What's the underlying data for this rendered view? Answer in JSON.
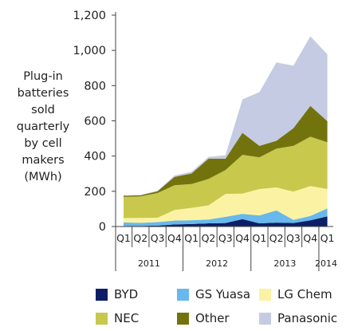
{
  "chart_data": {
    "type": "area",
    "stacked": true,
    "ylabel_lines": [
      "Plug-in",
      "batteries",
      "sold",
      "quarterly",
      "by cell",
      "makers",
      "(MWh)"
    ],
    "ylim": [
      0,
      1200
    ],
    "yticks": [
      0,
      200,
      400,
      600,
      800,
      1000,
      1200
    ],
    "ytick_labels": [
      "0",
      "200",
      "400",
      "600",
      "800",
      "1,000",
      "1,200"
    ],
    "categories": [
      "Q1",
      "Q2",
      "Q3",
      "Q4",
      "Q1",
      "Q2",
      "Q3",
      "Q4",
      "Q1",
      "Q2",
      "Q3",
      "Q4",
      "Q1"
    ],
    "years": [
      {
        "label": "2011",
        "start": 0,
        "end": 3
      },
      {
        "label": "2012",
        "start": 4,
        "end": 7
      },
      {
        "label": "2013",
        "start": 8,
        "end": 11
      },
      {
        "label": "2014",
        "start": 12,
        "end": 12
      }
    ],
    "legend_placement": "bottom",
    "series": [
      {
        "name": "BYD",
        "color": "#0c1f66",
        "values": [
          3,
          3,
          5,
          12,
          14,
          18,
          20,
          42,
          18,
          22,
          20,
          35,
          58
        ]
      },
      {
        "name": "GS Yuasa",
        "color": "#67b8ec",
        "values": [
          20,
          18,
          20,
          22,
          22,
          22,
          35,
          30,
          45,
          70,
          18,
          25,
          45
        ]
      },
      {
        "name": "LG Chem",
        "color": "#fbf3a3",
        "values": [
          25,
          28,
          25,
          60,
          70,
          80,
          130,
          115,
          150,
          130,
          160,
          170,
          110
        ]
      },
      {
        "name": "NEC",
        "color": "#c8c84c",
        "values": [
          120,
          122,
          140,
          140,
          135,
          150,
          135,
          220,
          180,
          220,
          260,
          280,
          265
        ]
      },
      {
        "name": "Other",
        "color": "#73730e",
        "values": [
          7,
          6,
          10,
          48,
          60,
          115,
          65,
          125,
          65,
          45,
          100,
          175,
          120
        ]
      },
      {
        "name": "Panasonic",
        "color": "#c5cbe2",
        "values": [
          2,
          3,
          3,
          8,
          10,
          10,
          20,
          190,
          305,
          445,
          355,
          395,
          380
        ]
      }
    ]
  }
}
